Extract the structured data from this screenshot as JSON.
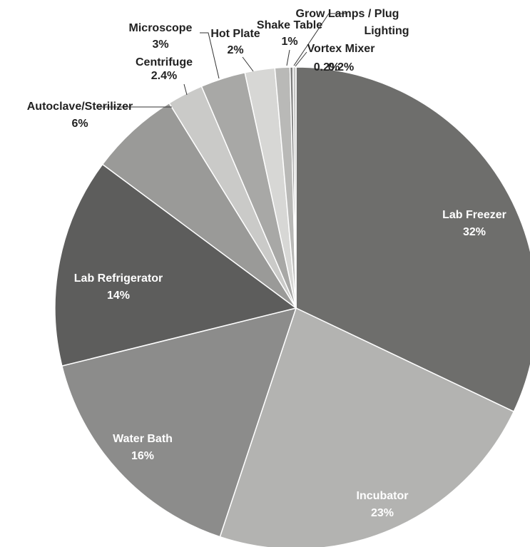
{
  "chart_data": {
    "type": "pie",
    "title": "",
    "slices": [
      {
        "label": "Lab Freezer",
        "pct_label": "32%",
        "value": 32,
        "color": "#6e6e6c",
        "label_inside": true
      },
      {
        "label": "Incubator",
        "pct_label": "23%",
        "value": 23,
        "color": "#b3b3b1",
        "label_inside": true
      },
      {
        "label": "Water Bath",
        "pct_label": "16%",
        "value": 16,
        "color": "#8c8c8b",
        "label_inside": true
      },
      {
        "label": "Lab Refrigerator",
        "pct_label": "14%",
        "value": 14,
        "color": "#5d5d5c",
        "label_inside": true
      },
      {
        "label": "Autoclave/Sterilizer",
        "pct_label": "6%",
        "value": 6,
        "color": "#9a9a98",
        "label_inside": false
      },
      {
        "label": "Centrifuge",
        "pct_label": "2.4%",
        "value": 2.4,
        "color": "#cacac8",
        "label_inside": false
      },
      {
        "label": "Microscope",
        "pct_label": "3%",
        "value": 3,
        "color": "#a8a8a6",
        "label_inside": false
      },
      {
        "label": "Hot Plate",
        "pct_label": "2%",
        "value": 2,
        "color": "#d7d7d5",
        "label_inside": false
      },
      {
        "label": "Shake Table",
        "pct_label": "1%",
        "value": 1,
        "color": "#b9b9b7",
        "label_inside": false
      },
      {
        "label": "Grow Lamps / Plug Lighting",
        "pct_label": "0.2%",
        "value": 0.2,
        "color": "#7e7e7d",
        "label_inside": false
      },
      {
        "label": "Vortex Mixer",
        "pct_label": "0.2%",
        "value": 0.2,
        "color": "#c4c4c2",
        "label_inside": false
      }
    ]
  }
}
